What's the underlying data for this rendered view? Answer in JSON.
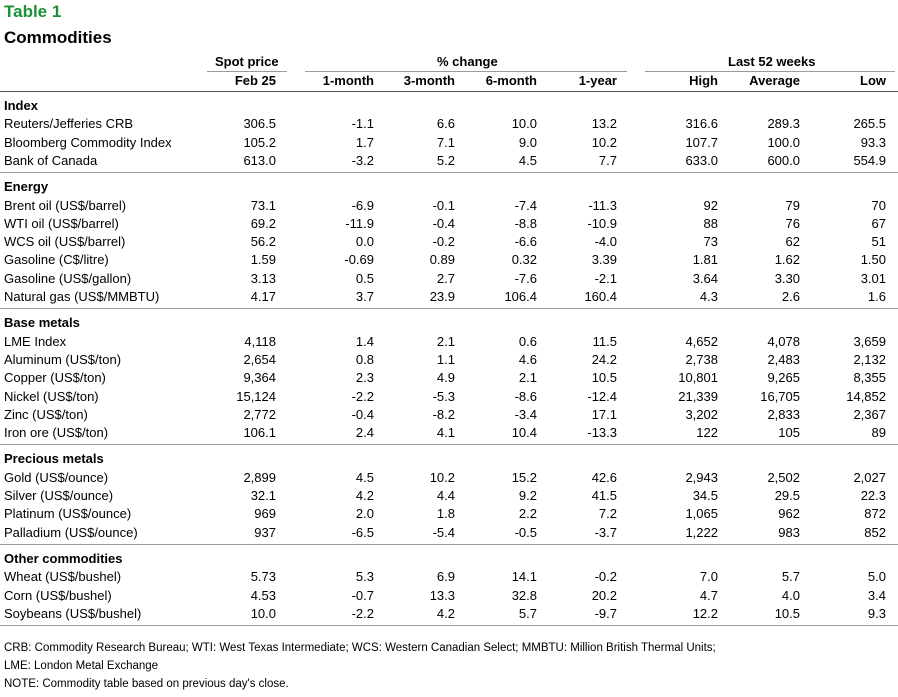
{
  "table_label": "Table 1",
  "title": "Commodities",
  "headers": {
    "spot_price": "Spot price",
    "pct_change": "% change",
    "last_52_weeks": "Last 52 weeks",
    "columns": [
      "Feb 25",
      "1-month",
      "3-month",
      "6-month",
      "1-year",
      "High",
      "Average",
      "Low"
    ]
  },
  "sections": [
    {
      "name": "Index",
      "rows": [
        {
          "label": "Reuters/Jefferies CRB",
          "values": [
            "306.5",
            "-1.1",
            "6.6",
            "10.0",
            "13.2",
            "316.6",
            "289.3",
            "265.5"
          ]
        },
        {
          "label": "Bloomberg Commodity Index",
          "values": [
            "105.2",
            "1.7",
            "7.1",
            "9.0",
            "10.2",
            "107.7",
            "100.0",
            "93.3"
          ]
        },
        {
          "label": "Bank of Canada",
          "values": [
            "613.0",
            "-3.2",
            "5.2",
            "4.5",
            "7.7",
            "633.0",
            "600.0",
            "554.9"
          ]
        }
      ]
    },
    {
      "name": "Energy",
      "rows": [
        {
          "label": "Brent oil (US$/barrel)",
          "values": [
            "73.1",
            "-6.9",
            "-0.1",
            "-7.4",
            "-11.3",
            "92",
            "79",
            "70"
          ]
        },
        {
          "label": "WTI oil (US$/barrel)",
          "values": [
            "69.2",
            "-11.9",
            "-0.4",
            "-8.8",
            "-10.9",
            "88",
            "76",
            "67"
          ]
        },
        {
          "label": "WCS oil (US$/barrel)",
          "values": [
            "56.2",
            "0.0",
            "-0.2",
            "-6.6",
            "-4.0",
            "73",
            "62",
            "51"
          ]
        },
        {
          "label": "Gasoline (C$/litre)",
          "values": [
            "1.59",
            "-0.69",
            "0.89",
            "0.32",
            "3.39",
            "1.81",
            "1.62",
            "1.50"
          ]
        },
        {
          "label": "Gasoline (US$/gallon)",
          "values": [
            "3.13",
            "0.5",
            "2.7",
            "-7.6",
            "-2.1",
            "3.64",
            "3.30",
            "3.01"
          ]
        },
        {
          "label": "Natural gas (US$/MMBTU)",
          "values": [
            "4.17",
            "3.7",
            "23.9",
            "106.4",
            "160.4",
            "4.3",
            "2.6",
            "1.6"
          ]
        }
      ]
    },
    {
      "name": "Base metals",
      "rows": [
        {
          "label": "LME Index",
          "values": [
            "4,118",
            "1.4",
            "2.1",
            "0.6",
            "11.5",
            "4,652",
            "4,078",
            "3,659"
          ]
        },
        {
          "label": "Aluminum (US$/ton)",
          "values": [
            "2,654",
            "0.8",
            "1.1",
            "4.6",
            "24.2",
            "2,738",
            "2,483",
            "2,132"
          ]
        },
        {
          "label": "Copper (US$/ton)",
          "values": [
            "9,364",
            "2.3",
            "4.9",
            "2.1",
            "10.5",
            "10,801",
            "9,265",
            "8,355"
          ]
        },
        {
          "label": "Nickel (US$/ton)",
          "values": [
            "15,124",
            "-2.2",
            "-5.3",
            "-8.6",
            "-12.4",
            "21,339",
            "16,705",
            "14,852"
          ]
        },
        {
          "label": "Zinc (US$/ton)",
          "values": [
            "2,772",
            "-0.4",
            "-8.2",
            "-3.4",
            "17.1",
            "3,202",
            "2,833",
            "2,367"
          ]
        },
        {
          "label": "Iron ore (US$/ton)",
          "values": [
            "106.1",
            "2.4",
            "4.1",
            "10.4",
            "-13.3",
            "122",
            "105",
            "89"
          ]
        }
      ]
    },
    {
      "name": "Precious metals",
      "rows": [
        {
          "label": "Gold (US$/ounce)",
          "values": [
            "2,899",
            "4.5",
            "10.2",
            "15.2",
            "42.6",
            "2,943",
            "2,502",
            "2,027"
          ]
        },
        {
          "label": "Silver (US$/ounce)",
          "values": [
            "32.1",
            "4.2",
            "4.4",
            "9.2",
            "41.5",
            "34.5",
            "29.5",
            "22.3"
          ]
        },
        {
          "label": "Platinum (US$/ounce)",
          "values": [
            "969",
            "2.0",
            "1.8",
            "2.2",
            "7.2",
            "1,065",
            "962",
            "872"
          ]
        },
        {
          "label": "Palladium (US$/ounce)",
          "values": [
            "937",
            "-6.5",
            "-5.4",
            "-0.5",
            "-3.7",
            "1,222",
            "983",
            "852"
          ]
        }
      ]
    },
    {
      "name": "Other commodities",
      "rows": [
        {
          "label": "Wheat (US$/bushel)",
          "values": [
            "5.73",
            "5.3",
            "6.9",
            "14.1",
            "-0.2",
            "7.0",
            "5.7",
            "5.0"
          ]
        },
        {
          "label": "Corn (US$/bushel)",
          "values": [
            "4.53",
            "-0.7",
            "13.3",
            "32.8",
            "20.2",
            "4.7",
            "4.0",
            "3.4"
          ]
        },
        {
          "label": "Soybeans (US$/bushel)",
          "values": [
            "10.0",
            "-2.2",
            "4.2",
            "5.7",
            "-9.7",
            "12.2",
            "10.5",
            "9.3"
          ]
        }
      ]
    }
  ],
  "footnotes": [
    "CRB: Commodity Research Bureau; WTI: West Texas Intermediate; WCS: Western Canadian Select; MMBTU: Million British Thermal Units;",
    "LME: London Metal Exchange",
    "NOTE: Commodity table based on previous day's close."
  ]
}
